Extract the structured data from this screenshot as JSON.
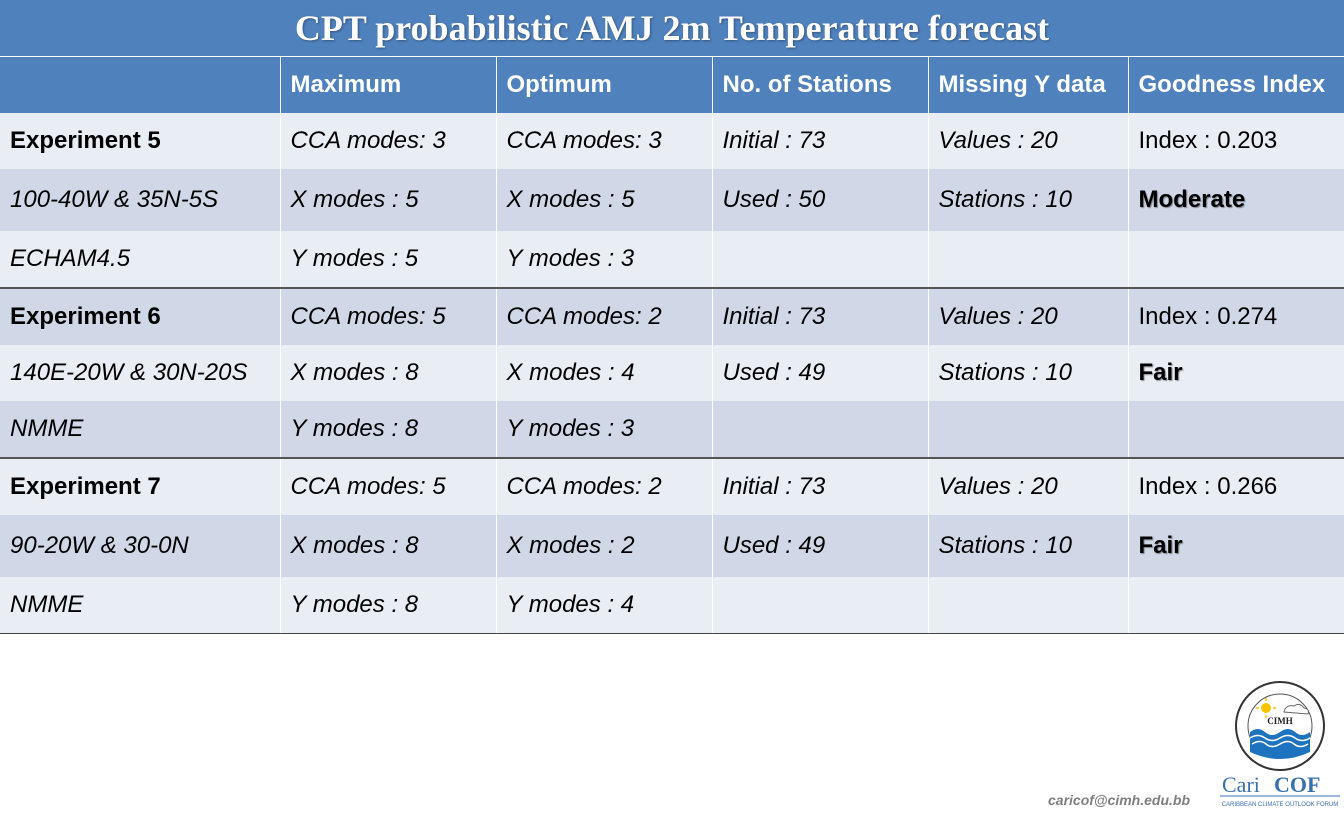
{
  "title": "CPT probabilistic AMJ 2m Temperature forecast",
  "headers": [
    "",
    "Maximum",
    "Optimum",
    "No. of Stations",
    "Missing Y data",
    "Goodness Index"
  ],
  "experiments": [
    {
      "rows": [
        [
          "Experiment 5",
          "CCA modes: 3",
          "CCA modes: 3",
          "Initial : 73",
          "Values : 20",
          "Index : 0.203"
        ],
        [
          "100-40W & 35N-5S",
          "X modes : 5",
          "X modes : 5",
          "Used : 50",
          "Stations : 10",
          "Moderate"
        ],
        [
          "ECHAM4.5",
          "Y modes : 5",
          "Y modes : 3",
          "",
          "",
          ""
        ]
      ]
    },
    {
      "rows": [
        [
          "Experiment 6",
          "CCA modes: 5",
          "CCA modes: 2",
          "Initial : 73",
          "Values : 20",
          "Index : 0.274"
        ],
        [
          "140E-20W & 30N-20S",
          "X modes : 8",
          "X modes : 4",
          "Used : 49",
          "Stations : 10",
          "Fair"
        ],
        [
          "NMME",
          "Y modes : 8",
          "Y modes : 3",
          "",
          "",
          ""
        ]
      ]
    },
    {
      "rows": [
        [
          "Experiment 7",
          "CCA modes: 5",
          "CCA modes: 2",
          "Initial : 73",
          "Values : 20",
          "Index : 0.266"
        ],
        [
          "90-20W & 30-0N",
          "X modes : 8",
          "X modes : 2",
          "Used : 49",
          "Stations : 10",
          "Fair"
        ],
        [
          "NMME",
          "Y modes : 8",
          "Y modes : 4",
          "",
          "",
          ""
        ]
      ]
    }
  ],
  "footer": {
    "email": "caricof@cimh.edu.bb",
    "logo_badge": "CIMH",
    "logo_name_a": "Cari",
    "logo_name_b": "COF",
    "logo_tagline": "CARIBBEAN CLIMATE OUTLOOK FORUM"
  },
  "colors": {
    "header_blue": "#4f81bd",
    "row_light": "#e9edf4",
    "row_dark": "#d0d8e8"
  }
}
